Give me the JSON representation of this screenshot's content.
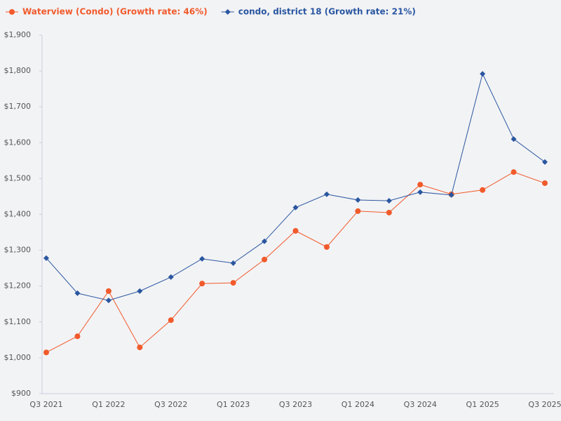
{
  "chart_data": {
    "type": "line",
    "categories": [
      "Q3 2021",
      null,
      "Q1 2022",
      null,
      "Q3 2022",
      null,
      "Q1 2023",
      null,
      "Q3 2023",
      null,
      "Q1 2024",
      null,
      "Q3 2024",
      null,
      "Q1 2025",
      null,
      "Q3 2025"
    ],
    "series": [
      {
        "name": "Waterview (Condo) (Growth rate: 46%)",
        "color": "#f15a2b",
        "marker": "circle",
        "values": [
          1015,
          1060,
          1186,
          1029,
          1105,
          1207,
          1209,
          1274,
          1354,
          1309,
          1409,
          1405,
          1483,
          1456,
          1468,
          1518,
          1487
        ]
      },
      {
        "name": "condo, district 18 (Growth rate: 21%)",
        "color": "#2a56a0",
        "marker": "diamond",
        "values": [
          1278,
          1180,
          1160,
          1186,
          1225,
          1276,
          1264,
          1325,
          1419,
          1456,
          1440,
          1438,
          1462,
          1454,
          1792,
          1610,
          1546
        ]
      }
    ],
    "ylim": [
      900,
      1900
    ],
    "yticks": [
      {
        "value": 900,
        "label": "$900"
      },
      {
        "value": 1000,
        "label": "$1,000"
      },
      {
        "value": 1100,
        "label": "$1,100"
      },
      {
        "value": 1200,
        "label": "$1,200"
      },
      {
        "value": 1300,
        "label": "$1,300"
      },
      {
        "value": 1400,
        "label": "$1,400"
      },
      {
        "value": 1500,
        "label": "$1,500"
      },
      {
        "value": 1600,
        "label": "$1,600"
      },
      {
        "value": 1700,
        "label": "$1,700"
      },
      {
        "value": 1800,
        "label": "$1,800"
      },
      {
        "value": 1900,
        "label": "$1,900"
      }
    ],
    "grid": false,
    "legend": "top-left"
  }
}
